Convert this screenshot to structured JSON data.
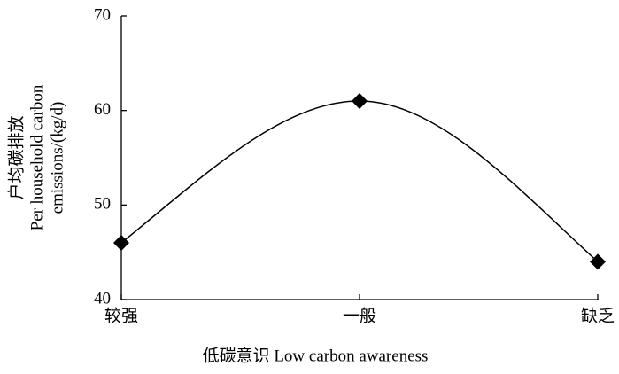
{
  "chart_data": {
    "type": "line",
    "categories": [
      "较强",
      "一般",
      "缺乏"
    ],
    "series": [
      {
        "name": "Per household carbon emissions",
        "color": "#000000",
        "values": [
          46,
          61,
          44
        ]
      }
    ],
    "ylabel": [
      "户均碳排放",
      "Per household carbon",
      "emissions/(kg/d)"
    ],
    "xlabel": "低碳意识 Low carbon awareness",
    "ylim": [
      40,
      70
    ],
    "yticks": [
      40,
      50,
      60,
      70
    ],
    "grid": false,
    "marker": "diamond",
    "smooth": true
  }
}
